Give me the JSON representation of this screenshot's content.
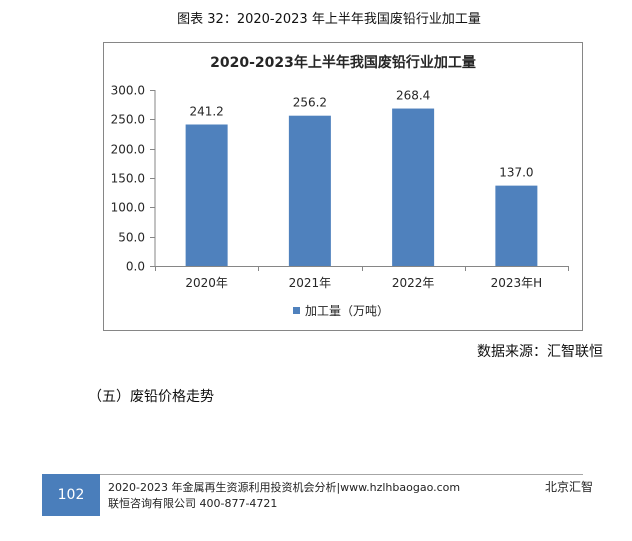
{
  "caption": "图表 32：2020-2023 年上半年我国废铅行业加工量",
  "chart_data": {
    "type": "bar",
    "title": "2020-2023年上半年我国废铅行业加工量",
    "xlabel": "",
    "ylabel": "",
    "categories": [
      "2020年",
      "2021年",
      "2022年",
      "2023年H"
    ],
    "series": [
      {
        "name": "加工量（万吨）",
        "values": [
          241.2,
          256.2,
          268.4,
          137.0
        ],
        "color": "#4f81bd"
      }
    ],
    "ylim": [
      0,
      300
    ],
    "yticks": [
      "0.0",
      "50.0",
      "100.0",
      "150.0",
      "200.0",
      "250.0",
      "300.0"
    ],
    "data_labels": true,
    "grid": false,
    "legend_position": "bottom"
  },
  "source": "数据来源：汇智联恒",
  "section_heading": "（五）废铅价格走势",
  "footer": {
    "page_number": "102",
    "line1": "2020-2023 年金属再生资源利用投资机会分析|www.hzlhbaogao.com",
    "line2": "联恒咨询有限公司 400-877-4721",
    "right": "北京汇智"
  },
  "colors": {
    "page_number_box": "#4a7ebb",
    "chart_border": "#868686",
    "axis": "#868686"
  }
}
